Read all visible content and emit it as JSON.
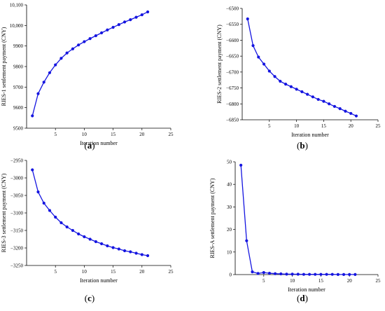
{
  "chart_data": [
    {
      "panel": "a",
      "type": "line",
      "xlabel": "Iteration number",
      "ylabel": "RIES-1 settlement payment (CNY)",
      "xlim": [
        0,
        25
      ],
      "ylim": [
        9500,
        10100
      ],
      "xticks": [
        5,
        10,
        15,
        20,
        25
      ],
      "yticks": [
        9500,
        9600,
        9700,
        9800,
        9900,
        10000,
        10100
      ],
      "ytick_labels": [
        "9500",
        "9600",
        "9700",
        "9800",
        "9900",
        "10,000",
        "10,100"
      ],
      "x": [
        1,
        2,
        3,
        4,
        5,
        6,
        7,
        8,
        9,
        10,
        11,
        12,
        13,
        14,
        15,
        16,
        17,
        18,
        19,
        20,
        21
      ],
      "y": [
        9560,
        9668,
        9724,
        9770,
        9808,
        9840,
        9866,
        9886,
        9905,
        9921,
        9936,
        9950,
        9964,
        9978,
        9991,
        10004,
        10017,
        10028,
        10040,
        10052,
        10066
      ],
      "color": "#1515e0"
    },
    {
      "panel": "b",
      "type": "line",
      "xlabel": "Iteration number",
      "ylabel": "RIES-2 settlement payment (CNY)",
      "xlim": [
        0,
        25
      ],
      "ylim": [
        -6850,
        -6500
      ],
      "xticks": [
        5,
        10,
        15,
        20,
        25
      ],
      "yticks": [
        -6500,
        -6550,
        -6600,
        -6650,
        -6700,
        -6750,
        -6800,
        -6850
      ],
      "ytick_labels": [
        "−6500",
        "−6550",
        "−6600",
        "−6650",
        "−6700",
        "−6750",
        "−6800",
        "−6850"
      ],
      "x": [
        1,
        2,
        3,
        4,
        5,
        6,
        7,
        8,
        9,
        10,
        11,
        12,
        13,
        14,
        15,
        16,
        17,
        18,
        19,
        20,
        21
      ],
      "y": [
        -6533,
        -6617,
        -6653,
        -6675,
        -6697,
        -6714,
        -6729,
        -6738,
        -6746,
        -6754,
        -6762,
        -6770,
        -6778,
        -6786,
        -6792,
        -6800,
        -6808,
        -6815,
        -6823,
        -6830,
        -6838
      ],
      "color": "#1515e0"
    },
    {
      "panel": "c",
      "type": "line",
      "xlabel": "Iteration number",
      "ylabel": "RIES-3 settlement payment (CNY)",
      "xlim": [
        0,
        25
      ],
      "ylim": [
        -3250,
        -2950
      ],
      "xticks": [
        5,
        10,
        15,
        20,
        25
      ],
      "yticks": [
        -2950,
        -3000,
        -3050,
        -3100,
        -3150,
        -3200,
        -3250
      ],
      "ytick_labels": [
        "−2950",
        "−3000",
        "−3050",
        "−3100",
        "−3150",
        "−3200",
        "−3250"
      ],
      "x": [
        1,
        2,
        3,
        4,
        5,
        6,
        7,
        8,
        9,
        10,
        11,
        12,
        13,
        14,
        15,
        16,
        17,
        18,
        19,
        20,
        21
      ],
      "y": [
        -2977,
        -3040,
        -3072,
        -3093,
        -3112,
        -3128,
        -3140,
        -3150,
        -3160,
        -3168,
        -3175,
        -3182,
        -3188,
        -3194,
        -3199,
        -3203,
        -3208,
        -3211,
        -3215,
        -3219,
        -3222
      ],
      "color": "#1515e0"
    },
    {
      "panel": "d",
      "type": "line",
      "xlabel": "Iteration number",
      "ylabel": "RIES-A settlement payment (CNY)",
      "xlim": [
        0,
        25
      ],
      "ylim": [
        0,
        50
      ],
      "xticks": [
        5,
        10,
        15,
        20,
        25
      ],
      "yticks": [
        0,
        10,
        20,
        30,
        40,
        50
      ],
      "ytick_labels": [
        "0",
        "10",
        "20",
        "30",
        "40",
        "50"
      ],
      "x": [
        1,
        2,
        3,
        4,
        5,
        6,
        7,
        8,
        9,
        10,
        11,
        12,
        13,
        14,
        15,
        16,
        17,
        18,
        19,
        20,
        21
      ],
      "y": [
        48.5,
        15.0,
        1.2,
        0.5,
        0.9,
        0.6,
        0.4,
        0.3,
        0.2,
        0.2,
        0.15,
        0.1,
        0.1,
        0.1,
        0.1,
        0.1,
        0.1,
        0.05,
        0.05,
        0.05,
        0.05
      ],
      "color": "#1515e0"
    }
  ]
}
